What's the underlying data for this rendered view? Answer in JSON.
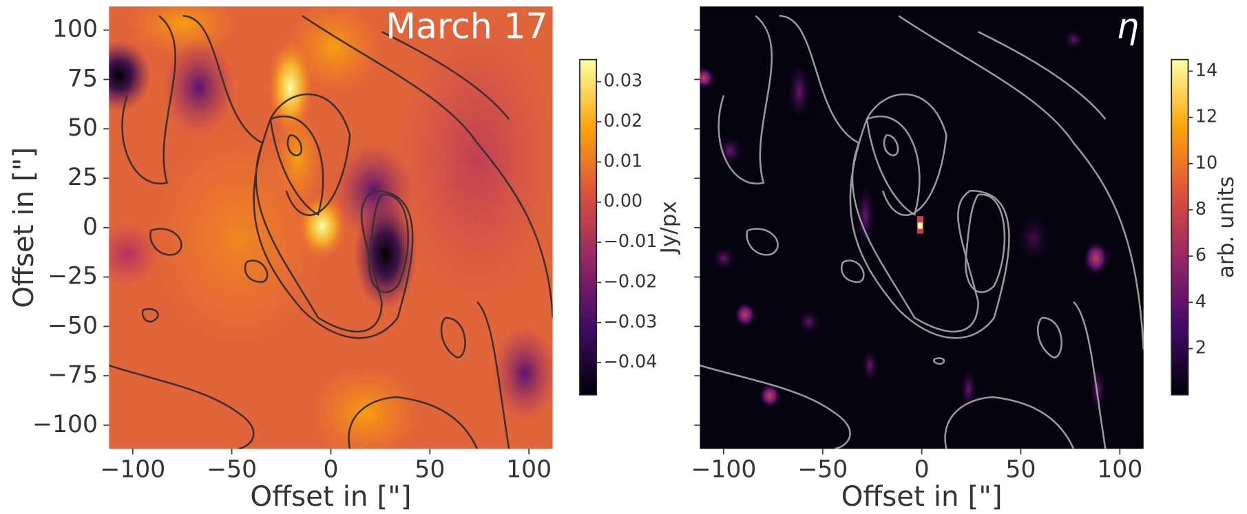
{
  "chart_data": [
    {
      "type": "heatmap",
      "title": "March 17",
      "xlabel": "Offset in [\"]",
      "ylabel": "Offset in [\"]",
      "xlim": [
        -112,
        112
      ],
      "ylim": [
        -112,
        112
      ],
      "xticks": [
        {
          "value": -100,
          "label": "−100"
        },
        {
          "value": -50,
          "label": "−50"
        },
        0,
        50,
        100
      ],
      "yticks": [
        {
          "value": -100,
          "label": "−100"
        },
        {
          "value": -75,
          "label": "−75"
        },
        {
          "value": -50,
          "label": "−50"
        },
        {
          "value": -25,
          "label": "−25"
        },
        0,
        25,
        50,
        75,
        100
      ],
      "ytick_labels": true,
      "cmap": "inferno",
      "title_color": "#ffffff",
      "contour_color": "#3a3030",
      "colorbar": {
        "label": "Jy/px",
        "lim": [
          -0.048,
          0.0355
        ],
        "ticks": [
          0.03,
          0.02,
          0.01,
          {
            "value": 0,
            "label": "0.00"
          },
          {
            "value": -0.01,
            "label": "−0.01"
          },
          {
            "value": -0.02,
            "label": "−0.02"
          },
          {
            "value": -0.03,
            "label": "−0.03"
          },
          {
            "value": -0.04,
            "label": "−0.04"
          }
        ]
      }
    },
    {
      "type": "heatmap",
      "title": "η",
      "xlabel": "Offset in [\"]",
      "xlim": [
        -112,
        112
      ],
      "ylim": [
        -112,
        112
      ],
      "xticks": [
        {
          "value": -100,
          "label": "−100"
        },
        {
          "value": -50,
          "label": "−50"
        },
        0,
        50,
        100
      ],
      "yticks": [
        -100,
        -75,
        -50,
        -25,
        0,
        25,
        50,
        75,
        100
      ],
      "ytick_labels": false,
      "cmap": "inferno",
      "title_color": "#ffffff",
      "contour_color": "#9a9a9a",
      "colorbar": {
        "label": "arb. units",
        "lim": [
          0,
          14.5
        ],
        "ticks": [
          2,
          4,
          6,
          8,
          10,
          12,
          14
        ]
      }
    }
  ]
}
